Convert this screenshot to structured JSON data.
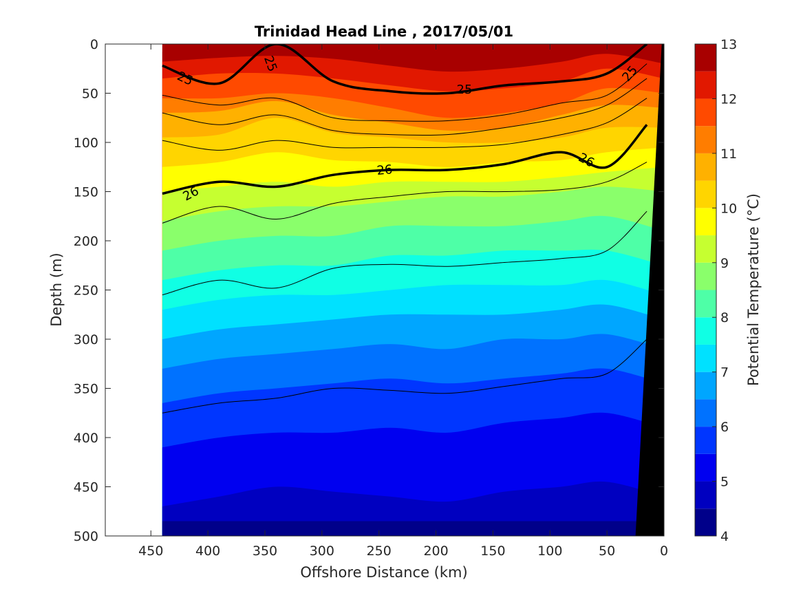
{
  "chart_data": {
    "type": "heatmap",
    "title": "Trinidad Head Line , 2017/05/01",
    "xlabel": "Offshore Distance (km)",
    "ylabel": "Depth (m)",
    "colorbar_label": "Potential Temperature (°C)",
    "x_axis_reversed": true,
    "y_axis_reversed": true,
    "xlim": [
      0,
      490
    ],
    "ylim": [
      0,
      500
    ],
    "x_ticks": [
      450,
      400,
      350,
      300,
      250,
      200,
      150,
      100,
      50,
      0
    ],
    "y_ticks": [
      0,
      50,
      100,
      150,
      200,
      250,
      300,
      350,
      400,
      450,
      500
    ],
    "colorbar_ticks": [
      4,
      5,
      6,
      7,
      8,
      9,
      10,
      11,
      12,
      13
    ],
    "colorbar_range": [
      4,
      13
    ],
    "data_extent_km": [
      0,
      440
    ],
    "temperature_levels": [
      {
        "value": 12.5,
        "color": "#a80000"
      },
      {
        "value": 12.0,
        "color": "#e11800"
      },
      {
        "value": 11.5,
        "color": "#ff4a00"
      },
      {
        "value": 11.0,
        "color": "#ff7d00"
      },
      {
        "value": 10.5,
        "color": "#ffb100"
      },
      {
        "value": 10.0,
        "color": "#ffd500"
      },
      {
        "value": 9.5,
        "color": "#ffff00"
      },
      {
        "value": 9.0,
        "color": "#c6ff30"
      },
      {
        "value": 8.5,
        "color": "#8aff6b"
      },
      {
        "value": 8.0,
        "color": "#4effa7"
      },
      {
        "value": 7.5,
        "color": "#10ffe4"
      },
      {
        "value": 7.0,
        "color": "#00e1ff"
      },
      {
        "value": 6.5,
        "color": "#00a6ff"
      },
      {
        "value": 6.0,
        "color": "#0072ff"
      },
      {
        "value": 5.5,
        "color": "#0036ff"
      },
      {
        "value": 5.0,
        "color": "#0000f0"
      },
      {
        "value": 4.5,
        "color": "#0000c0"
      },
      {
        "value": 4.0,
        "color": "#00008a"
      }
    ],
    "isotherm_depths_m": [
      {
        "value": 12.5,
        "depths": [
          8,
          6,
          4,
          5,
          8,
          10,
          10,
          6,
          4,
          10
        ]
      },
      {
        "value": 12.0,
        "depths": [
          18,
          14,
          12,
          15,
          22,
          28,
          25,
          18,
          10,
          20
        ]
      },
      {
        "value": 11.5,
        "depths": [
          35,
          30,
          30,
          35,
          42,
          48,
          45,
          38,
          25,
          35
        ]
      },
      {
        "value": 11.0,
        "depths": [
          55,
          55,
          50,
          55,
          65,
          75,
          70,
          60,
          45,
          50
        ]
      },
      {
        "value": 10.5,
        "depths": [
          70,
          68,
          58,
          72,
          80,
          88,
          85,
          72,
          62,
          65
        ]
      },
      {
        "value": 10.0,
        "depths": [
          95,
          92,
          75,
          90,
          95,
          100,
          100,
          95,
          85,
          85
        ]
      },
      {
        "value": 9.5,
        "depths": [
          125,
          120,
          110,
          118,
          120,
          125,
          120,
          118,
          110,
          105
        ]
      },
      {
        "value": 9.0,
        "depths": [
          150,
          145,
          140,
          145,
          140,
          140,
          140,
          135,
          130,
          125
        ]
      },
      {
        "value": 8.5,
        "depths": [
          180,
          170,
          165,
          165,
          160,
          155,
          155,
          150,
          145,
          150
        ]
      },
      {
        "value": 8.0,
        "depths": [
          210,
          200,
          195,
          195,
          185,
          185,
          185,
          180,
          175,
          190
        ]
      },
      {
        "value": 7.5,
        "depths": [
          240,
          230,
          225,
          225,
          215,
          215,
          210,
          210,
          210,
          225
        ]
      },
      {
        "value": 7.0,
        "depths": [
          270,
          260,
          255,
          255,
          250,
          245,
          245,
          245,
          240,
          255
        ]
      },
      {
        "value": 6.5,
        "depths": [
          300,
          290,
          285,
          280,
          275,
          275,
          275,
          270,
          265,
          280
        ]
      },
      {
        "value": 6.0,
        "depths": [
          330,
          320,
          315,
          310,
          305,
          310,
          300,
          300,
          295,
          310
        ]
      },
      {
        "value": 5.5,
        "depths": [
          365,
          355,
          350,
          345,
          340,
          345,
          340,
          335,
          330,
          345
        ]
      },
      {
        "value": 5.0,
        "depths": [
          410,
          400,
          395,
          395,
          390,
          395,
          385,
          380,
          375,
          390
        ]
      },
      {
        "value": 4.5,
        "depths": [
          470,
          460,
          450,
          455,
          460,
          465,
          455,
          450,
          445,
          460
        ]
      }
    ],
    "contour_x_km": [
      440,
      390,
      340,
      290,
      240,
      190,
      140,
      90,
      50,
      15
    ],
    "sigma_contours": [
      {
        "label": "25",
        "bold": true,
        "depths": [
          22,
          40,
          0,
          38,
          48,
          50,
          42,
          38,
          30,
          0
        ]
      },
      {
        "label": "",
        "bold": false,
        "depths": [
          52,
          62,
          55,
          75,
          78,
          78,
          72,
          60,
          52,
          20
        ]
      },
      {
        "label": "",
        "bold": false,
        "depths": [
          70,
          82,
          72,
          88,
          92,
          92,
          85,
          75,
          62,
          35
        ]
      },
      {
        "label": "",
        "bold": false,
        "depths": [
          98,
          108,
          98,
          105,
          105,
          105,
          102,
          92,
          80,
          55
        ]
      },
      {
        "label": "26",
        "bold": true,
        "depths": [
          152,
          140,
          145,
          133,
          128,
          128,
          122,
          110,
          125,
          82
        ]
      },
      {
        "label": "",
        "bold": false,
        "depths": [
          182,
          165,
          178,
          162,
          155,
          150,
          150,
          148,
          140,
          120
        ]
      },
      {
        "label": "",
        "bold": false,
        "depths": [
          255,
          240,
          248,
          228,
          224,
          226,
          222,
          218,
          210,
          170
        ]
      },
      {
        "label": "",
        "bold": false,
        "depths": [
          375,
          365,
          360,
          350,
          352,
          355,
          348,
          340,
          335,
          300
        ]
      }
    ],
    "contour_labels": [
      {
        "text": "25",
        "x_km": 420,
        "depth": 35,
        "angle": 25
      },
      {
        "text": "25",
        "x_km": 345,
        "depth": 20,
        "angle": 70
      },
      {
        "text": "25",
        "x_km": 175,
        "depth": 46,
        "angle": 0
      },
      {
        "text": "25",
        "x_km": 30,
        "depth": 30,
        "angle": -50
      },
      {
        "text": "26",
        "x_km": 415,
        "depth": 152,
        "angle": -28
      },
      {
        "text": "26",
        "x_km": 245,
        "depth": 128,
        "angle": -5
      },
      {
        "text": "26",
        "x_km": 68,
        "depth": 118,
        "angle": 28
      }
    ],
    "bathymetry_polygon": [
      [
        2,
        0
      ],
      [
        25,
        500
      ],
      [
        0,
        500
      ],
      [
        0,
        0
      ]
    ]
  }
}
